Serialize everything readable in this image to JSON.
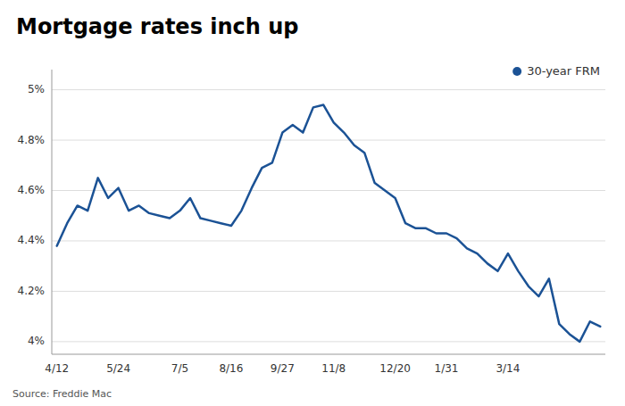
{
  "chart_data": {
    "type": "line",
    "title": "Mortgage rates inch up",
    "source": "Source: Freddie Mac",
    "categories": [
      "4/12",
      null,
      null,
      null,
      null,
      null,
      "5/24",
      null,
      null,
      null,
      null,
      null,
      "7/5",
      null,
      null,
      null,
      null,
      "8/16",
      null,
      null,
      null,
      null,
      "9/27",
      null,
      null,
      null,
      null,
      "11/8",
      null,
      null,
      null,
      null,
      null,
      "12/20",
      null,
      null,
      null,
      null,
      "1/31",
      null,
      null,
      null,
      null,
      null,
      "3/14",
      null,
      null,
      null,
      null,
      null,
      null,
      null,
      null,
      null
    ],
    "series": [
      {
        "name": "30-year FRM",
        "color": "#1b5295",
        "values": [
          4.38,
          4.47,
          4.54,
          4.52,
          4.65,
          4.57,
          4.61,
          4.52,
          4.54,
          4.51,
          4.5,
          4.49,
          4.52,
          4.57,
          4.49,
          4.48,
          4.47,
          4.46,
          4.52,
          4.61,
          4.69,
          4.71,
          4.83,
          4.86,
          4.83,
          4.93,
          4.94,
          4.87,
          4.83,
          4.78,
          4.75,
          4.63,
          4.6,
          4.57,
          4.47,
          4.45,
          4.45,
          4.43,
          4.43,
          4.41,
          4.37,
          4.35,
          4.31,
          4.28,
          4.35,
          4.28,
          4.22,
          4.18,
          4.25,
          4.07,
          4.03,
          4.0,
          4.08,
          4.06
        ]
      }
    ],
    "ylim": [
      3.95,
      5.08
    ],
    "yticks": [
      {
        "value": 4.0,
        "label": "4%"
      },
      {
        "value": 4.2,
        "label": "4.2%"
      },
      {
        "value": 4.4,
        "label": "4.4%"
      },
      {
        "value": 4.6,
        "label": "4.6%"
      },
      {
        "value": 4.8,
        "label": "4.8%"
      },
      {
        "value": 5.0,
        "label": "5%"
      }
    ],
    "grid": true,
    "legend": "upper right"
  }
}
